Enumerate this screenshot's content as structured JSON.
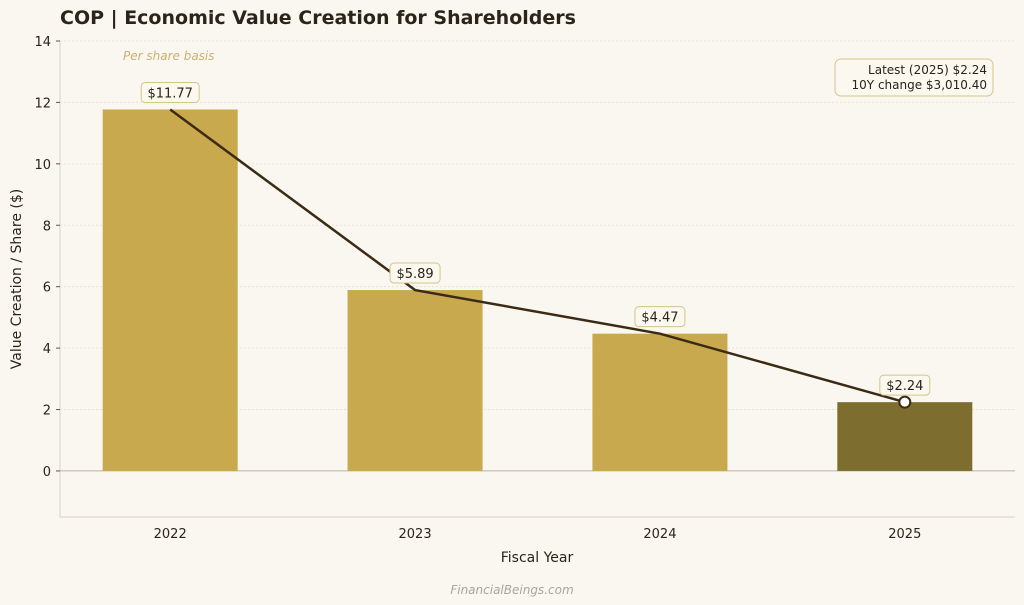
{
  "chart_data": {
    "type": "bar",
    "title": "COP | Economic Value Creation for Shareholders",
    "subtitle": "Per share basis",
    "xlabel": "Fiscal Year",
    "ylabel": "Value Creation / Share ($)",
    "categories": [
      "2022",
      "2023",
      "2024",
      "2025"
    ],
    "values": [
      11.77,
      5.89,
      4.47,
      2.24
    ],
    "data_labels": [
      "$11.77",
      "$5.89",
      "$4.47",
      "$2.24"
    ],
    "ylim": [
      -1.5,
      14
    ],
    "yticks": [
      0,
      2,
      4,
      6,
      8,
      10,
      12,
      14
    ],
    "grid": true,
    "overlay_line": true,
    "colors": {
      "bar": "#c9a94e",
      "latest_bar": "#7d6d2e",
      "line": "#3b2a14",
      "background": "#faf7f1"
    },
    "annotation": {
      "line1": "Latest (2025)  $2.24",
      "line2": "10Y change  $3,010.40",
      "placement": "top-right"
    }
  },
  "watermark": "FinancialBeings.com"
}
